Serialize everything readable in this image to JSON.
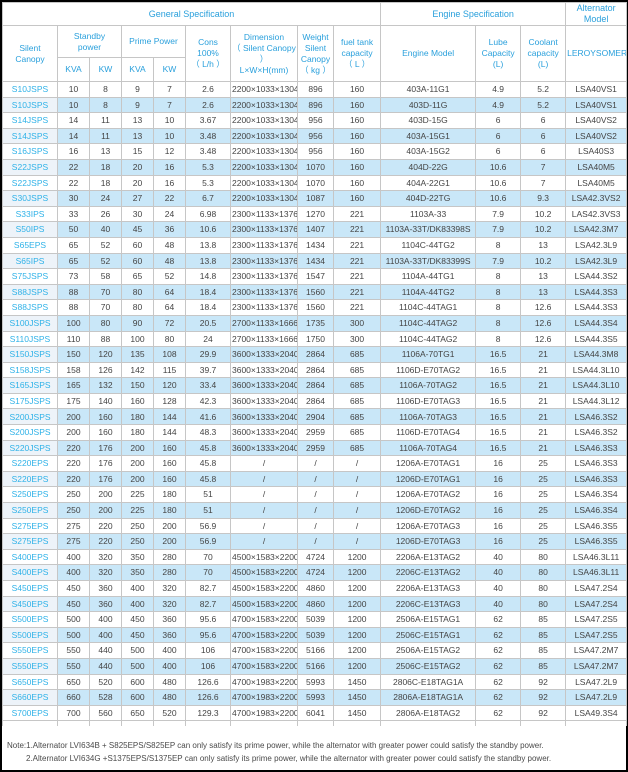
{
  "colors": {
    "header_text": "#2aa0dc",
    "model_text": "#2fb2e8",
    "alt_row_bg": "#c9e7f8",
    "alt_model_bg": "#edf3f9",
    "body_text": "#444444",
    "border": "#c6c6c6"
  },
  "table": {
    "group_headers": {
      "general": "General Specification",
      "engine": "Engine Specification",
      "alternator": "Alternator Model"
    },
    "columns": {
      "silent_canopy": "Silent\nCanopy",
      "standby_power": "Standby\npower",
      "prime_power": "Prime Power",
      "cons": "Cons\n100%\n（ L/h ）",
      "dimension": "Dimension\n（ Silent Canopy ）\nL×W×H(mm)",
      "weight": "Weight\nSilent\nCanopy\n（ kg ）",
      "fuel_tank": "fuel tank\ncapacity\n（ L ）",
      "engine_model": "Engine Model",
      "lube_capacity": "Lube\nCapacity\n(L)",
      "coolant_capacity": "Coolant\ncapacity\n(L)",
      "alternator_brand": "LEROYSOMER",
      "standby_kva": "KVA",
      "standby_kw": "KW",
      "prime_kva": "KVA",
      "prime_kw": "KW"
    },
    "rows": [
      [
        "S10JSPS",
        "10",
        "8",
        "9",
        "7",
        "2.6",
        "2200×1033×1304",
        "896",
        "160",
        "403A-11G1",
        "4.9",
        "5.2",
        "LSA40VS1"
      ],
      [
        "S10JSPS",
        "10",
        "8",
        "9",
        "7",
        "2.6",
        "2200×1033×1304",
        "896",
        "160",
        "403D-11G",
        "4.9",
        "5.2",
        "LSA40VS1"
      ],
      [
        "S14JSPS",
        "14",
        "11",
        "13",
        "10",
        "3.67",
        "2200×1033×1304",
        "956",
        "160",
        "403D-15G",
        "6",
        "6",
        "LSA40VS2"
      ],
      [
        "S14JSPS",
        "14",
        "11",
        "13",
        "10",
        "3.48",
        "2200×1033×1304",
        "956",
        "160",
        "403A-15G1",
        "6",
        "6",
        "LSA40VS2"
      ],
      [
        "S16JSPS",
        "16",
        "13",
        "15",
        "12",
        "3.48",
        "2200×1033×1304",
        "956",
        "160",
        "403A-15G2",
        "6",
        "6",
        "LSA40S3"
      ],
      [
        "S22JSPS",
        "22",
        "18",
        "20",
        "16",
        "5.3",
        "2200×1033×1304",
        "1070",
        "160",
        "404D-22G",
        "10.6",
        "7",
        "LSA40M5"
      ],
      [
        "S22JSPS",
        "22",
        "18",
        "20",
        "16",
        "5.3",
        "2200×1033×1304",
        "1070",
        "160",
        "404A-22G1",
        "10.6",
        "7",
        "LSA40M5"
      ],
      [
        "S30JSPS",
        "30",
        "24",
        "27",
        "22",
        "6.7",
        "2200×1033×1304",
        "1087",
        "160",
        "404D-22TG",
        "10.6",
        "9.3",
        "LSA42.3VS2"
      ],
      [
        "S33IPS",
        "33",
        "26",
        "30",
        "24",
        "6.98",
        "2300×1133×1376",
        "1270",
        "221",
        "1103A-33",
        "7.9",
        "10.2",
        "LAS42.3VS3"
      ],
      [
        "S50IPS",
        "50",
        "40",
        "45",
        "36",
        "10.6",
        "2300×1133×1376",
        "1407",
        "221",
        "1103A-33T/DK83398S",
        "7.9",
        "10.2",
        "LSA42.3M7"
      ],
      [
        "S65EPS",
        "65",
        "52",
        "60",
        "48",
        "13.8",
        "2300×1133×1376",
        "1434",
        "221",
        "1104C-44TG2",
        "8",
        "13",
        "LSA42.3L9"
      ],
      [
        "S65IPS",
        "65",
        "52",
        "60",
        "48",
        "13.8",
        "2300×1133×1376",
        "1434",
        "221",
        "1103A-33T/DK83399S",
        "7.9",
        "10.2",
        "LSA42.3L9"
      ],
      [
        "S75JSPS",
        "73",
        "58",
        "65",
        "52",
        "14.8",
        "2300×1133×1376",
        "1547",
        "221",
        "1104A-44TG1",
        "8",
        "13",
        "LSA44.3S2"
      ],
      [
        "S88JSPS",
        "88",
        "70",
        "80",
        "64",
        "18.4",
        "2300×1133×1376",
        "1560",
        "221",
        "1104A-44TG2",
        "8",
        "13",
        "LSA44.3S3"
      ],
      [
        "S88JSPS",
        "88",
        "70",
        "80",
        "64",
        "18.4",
        "2300×1133×1376",
        "1560",
        "221",
        "1104C-44TAG1",
        "8",
        "12.6",
        "LSA44.3S3"
      ],
      [
        "S100JSPS",
        "100",
        "80",
        "90",
        "72",
        "20.5",
        "2700×1133×1666",
        "1735",
        "300",
        "1104C-44TAG2",
        "8",
        "12.6",
        "LSA44.3S4"
      ],
      [
        "S110JSPS",
        "110",
        "88",
        "100",
        "80",
        "24",
        "2700×1133×1666",
        "1750",
        "300",
        "1104C-44TAG2",
        "8",
        "12.6",
        "LSA44.3S5"
      ],
      [
        "S150JSPS",
        "150",
        "120",
        "135",
        "108",
        "29.9",
        "3600×1333×2040",
        "2864",
        "685",
        "1106A-70TG1",
        "16.5",
        "21",
        "LSA44.3M8"
      ],
      [
        "S158JSPS",
        "158",
        "126",
        "142",
        "115",
        "39.7",
        "3600×1333×2040",
        "2864",
        "685",
        "1106D-E70TAG2",
        "16.5",
        "21",
        "LSA44.3L10"
      ],
      [
        "S165JSPS",
        "165",
        "132",
        "150",
        "120",
        "33.4",
        "3600×1333×2040",
        "2864",
        "685",
        "1106A-70TAG2",
        "16.5",
        "21",
        "LSA44.3L10"
      ],
      [
        "S175JSPS",
        "175",
        "140",
        "160",
        "128",
        "42.3",
        "3600×1333×2040",
        "2864",
        "685",
        "1106D-E70TAG3",
        "16.5",
        "21",
        "LSA44.3L12"
      ],
      [
        "S200JSPS",
        "200",
        "160",
        "180",
        "144",
        "41.6",
        "3600×1333×2040",
        "2904",
        "685",
        "1106A-70TAG3",
        "16.5",
        "21",
        "LSA46.3S2"
      ],
      [
        "S200JSPS",
        "200",
        "160",
        "180",
        "144",
        "48.3",
        "3600×1333×2040",
        "2959",
        "685",
        "1106D-E70TAG4",
        "16.5",
        "21",
        "LSA46.3S2"
      ],
      [
        "S220JSPS",
        "220",
        "176",
        "200",
        "160",
        "45.8",
        "3600×1333×2040",
        "2959",
        "685",
        "1106A-70TAG4",
        "16.5",
        "21",
        "LSA46.3S3"
      ],
      [
        "S220EPS",
        "220",
        "176",
        "200",
        "160",
        "45.8",
        "/",
        "/",
        "/",
        "1206A-E70TAG1",
        "16",
        "25",
        "LSA46.3S3"
      ],
      [
        "S220EPS",
        "220",
        "176",
        "200",
        "160",
        "45.8",
        "/",
        "/",
        "/",
        "1206D-E70TAG1",
        "16",
        "25",
        "LSA46.3S3"
      ],
      [
        "S250EPS",
        "250",
        "200",
        "225",
        "180",
        "51",
        "/",
        "/",
        "/",
        "1206A-E70TAG2",
        "16",
        "25",
        "LSA46.3S4"
      ],
      [
        "S250EPS",
        "250",
        "200",
        "225",
        "180",
        "51",
        "/",
        "/",
        "/",
        "1206D-E70TAG2",
        "16",
        "25",
        "LSA46.3S4"
      ],
      [
        "S275EPS",
        "275",
        "220",
        "250",
        "200",
        "56.9",
        "/",
        "/",
        "/",
        "1206A-E70TAG3",
        "16",
        "25",
        "LSA46.3S5"
      ],
      [
        "S275EPS",
        "275",
        "220",
        "250",
        "200",
        "56.9",
        "/",
        "/",
        "/",
        "1206D-E70TAG3",
        "16",
        "25",
        "LSA46.3S5"
      ],
      [
        "S400EPS",
        "400",
        "320",
        "350",
        "280",
        "70",
        "4500×1583×2200",
        "4724",
        "1200",
        "2206A-E13TAG2",
        "40",
        "80",
        "LSA46.3L11"
      ],
      [
        "S400EPS",
        "400",
        "320",
        "350",
        "280",
        "70",
        "4500×1583×2200",
        "4724",
        "1200",
        "2206C-E13TAG2",
        "40",
        "80",
        "LSA46.3L11"
      ],
      [
        "S450EPS",
        "450",
        "360",
        "400",
        "320",
        "82.7",
        "4500×1583×2200",
        "4860",
        "1200",
        "2206A-E13TAG3",
        "40",
        "80",
        "LSA47.2S4"
      ],
      [
        "S450EPS",
        "450",
        "360",
        "400",
        "320",
        "82.7",
        "4500×1583×2200",
        "4860",
        "1200",
        "2206C-E13TAG3",
        "40",
        "80",
        "LSA47.2S4"
      ],
      [
        "S500EPS",
        "500",
        "400",
        "450",
        "360",
        "95.6",
        "4700×1583×2200",
        "5039",
        "1200",
        "2506A-E15TAG1",
        "62",
        "85",
        "LSA47.2S5"
      ],
      [
        "S500EPS",
        "500",
        "400",
        "450",
        "360",
        "95.6",
        "4700×1583×2200",
        "5039",
        "1200",
        "2506C-E15TAG1",
        "62",
        "85",
        "LSA47.2S5"
      ],
      [
        "S550EPS",
        "550",
        "440",
        "500",
        "400",
        "106",
        "4700×1583×2200",
        "5166",
        "1200",
        "2506A-E15TAG2",
        "62",
        "85",
        "LSA47.2M7"
      ],
      [
        "S550EPS",
        "550",
        "440",
        "500",
        "400",
        "106",
        "4700×1583×2200",
        "5166",
        "1200",
        "2506C-E15TAG2",
        "62",
        "85",
        "LSA47.2M7"
      ],
      [
        "S650EPS",
        "650",
        "520",
        "600",
        "480",
        "126.6",
        "4700×1983×2200",
        "5993",
        "1450",
        "2806C-E18TAG1A",
        "62",
        "92",
        "LSA47.2L9"
      ],
      [
        "S660EPS",
        "660",
        "528",
        "600",
        "480",
        "126.6",
        "4700×1983×2200",
        "5993",
        "1450",
        "2806A-E18TAG1A",
        "62",
        "92",
        "LSA47.2L9"
      ],
      [
        "S700EPS",
        "700",
        "560",
        "650",
        "520",
        "129.3",
        "4700×1983×2200",
        "6041",
        "1450",
        "2806A-E18TAG2",
        "62",
        "92",
        "LSA49.3S4"
      ]
    ]
  },
  "notes": {
    "line1": "Note:1.Alternator LVI634B + S825EPS/S825EP can only satisfy its prime power, while the alternator with greater power could satisfy the standby power.",
    "line2": "2.Alternator LVI634G +S1375EPS/S1375EP can only satisfy its prime power, while the alternator with greater power could satisfy the standby power."
  }
}
